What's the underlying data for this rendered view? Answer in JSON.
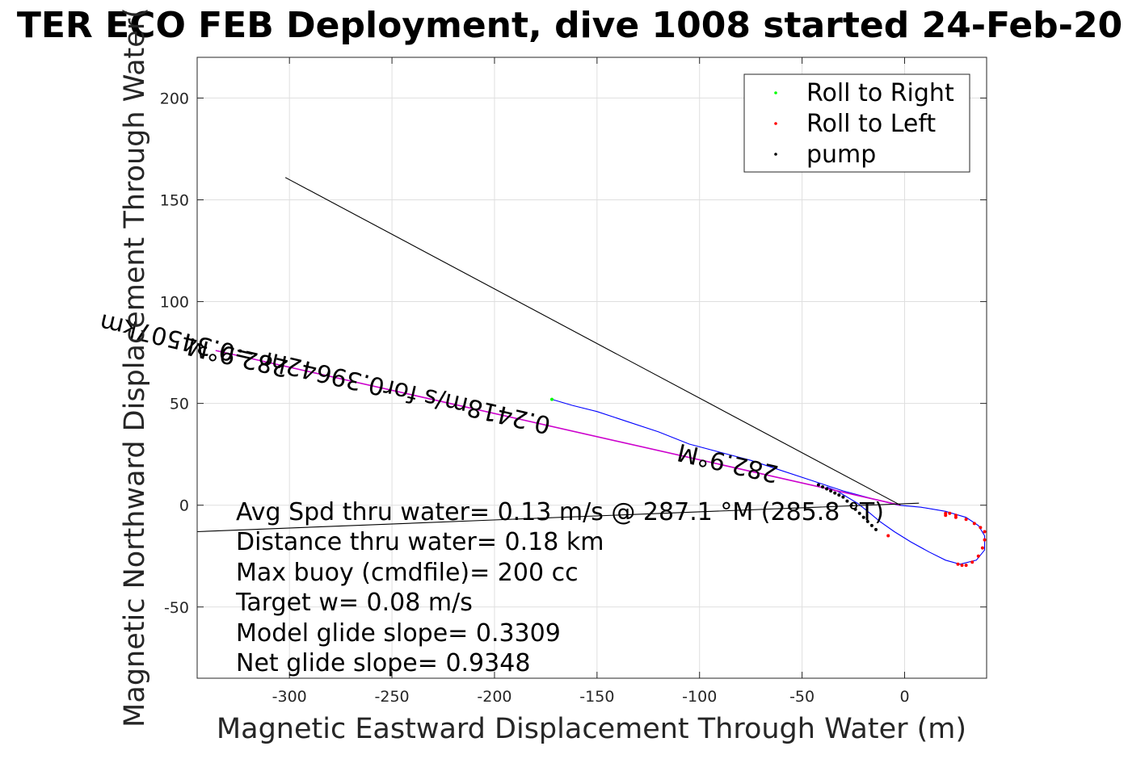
{
  "chart_data": {
    "type": "line",
    "title": "TER ECO FEB Deployment, dive 1008 started 24-Feb-20",
    "xlabel": "Magnetic Eastward Displacement Through Water (m)",
    "ylabel": "Magnetic Northward Displacement Through Water(",
    "xlim": [
      -345,
      40
    ],
    "ylim": [
      -85,
      220
    ],
    "xticks": [
      -300,
      -250,
      -200,
      -150,
      -100,
      -50,
      0
    ],
    "yticks": [
      200,
      150,
      100,
      50,
      0,
      -50
    ],
    "grid": true,
    "legend_position": "top-right",
    "legend": [
      {
        "label": "Roll to Right",
        "color": "#00ff00"
      },
      {
        "label": "Roll to Left",
        "color": "#ff0000"
      },
      {
        "label": "pump",
        "color": "#000000"
      }
    ],
    "series": [
      {
        "kind": "trajectory",
        "color": "#0000ff",
        "x": [
          -172,
          -162,
          -150,
          -135,
          -120,
          -105,
          -90,
          -75,
          -60,
          -45,
          -30,
          -15,
          -3,
          8,
          20,
          30,
          36,
          39,
          39,
          35,
          27,
          20,
          12,
          3,
          -5,
          -12,
          -18,
          -23,
          -28,
          -33,
          -38
        ],
        "y": [
          52,
          49,
          46,
          41,
          36,
          30,
          26,
          22,
          17,
          12,
          7,
          3,
          0,
          -1,
          -3,
          -6,
          -10,
          -15,
          -22,
          -27,
          -29,
          -27,
          -23,
          -18,
          -13,
          -8,
          -3,
          1,
          4,
          7,
          9
        ]
      },
      {
        "kind": "fit-line",
        "color": "#cc00cc",
        "x": [
          -336,
          -2
        ],
        "y": [
          76,
          0
        ]
      },
      {
        "kind": "reference-line",
        "color": "#000000",
        "x": [
          -302,
          -2
        ],
        "y": [
          161,
          0
        ]
      },
      {
        "kind": "reference-line",
        "color": "#000000",
        "x": [
          -345,
          7
        ],
        "y": [
          -13,
          1
        ]
      }
    ],
    "markers": [
      {
        "kind": "roll-right",
        "color": "#00ff00",
        "x": [
          -172
        ],
        "y": [
          52
        ]
      },
      {
        "kind": "roll-left",
        "color": "#ff0000",
        "x": [
          20,
          22,
          25,
          26,
          28,
          30,
          33,
          36,
          38,
          39,
          39,
          37,
          34,
          30,
          25,
          20,
          -8
        ],
        "y": [
          -4,
          -4,
          -5,
          -29,
          -29.5,
          -29.5,
          -28,
          -25,
          -21,
          -17,
          -13,
          -11,
          -9,
          -7,
          -6,
          -5,
          -15
        ]
      },
      {
        "kind": "pump",
        "color": "#000000",
        "x": [
          -14,
          -16,
          -18,
          -20,
          -22,
          -24,
          -26,
          -28,
          -30,
          -32,
          -34,
          -36,
          -38,
          -40,
          -42
        ],
        "y": [
          -12,
          -10,
          -8,
          -6,
          -4,
          -2,
          0,
          2,
          4,
          5,
          6,
          7,
          8,
          9,
          10
        ]
      }
    ],
    "annotations": [
      {
        "text": "282.9°M",
        "x": -300,
        "y": 71,
        "rotation": 193
      },
      {
        "text": "0.2418m/s for0.39642hr =0.34507km",
        "x": -172,
        "y": 43,
        "rotation": 193
      },
      {
        "text": "282.9°M",
        "x": -61,
        "y": 19,
        "rotation": 193
      }
    ],
    "stats": [
      "Avg Spd thru water=  0.13 m/s @ 287.1 °M (285.8 °T)",
      "Distance thru water=  0.18 km",
      "Max buoy (cmdfile)= 200 cc",
      "Target w= 0.08 m/s",
      "Model glide slope= 0.3309",
      "Net glide slope= 0.9348"
    ]
  }
}
